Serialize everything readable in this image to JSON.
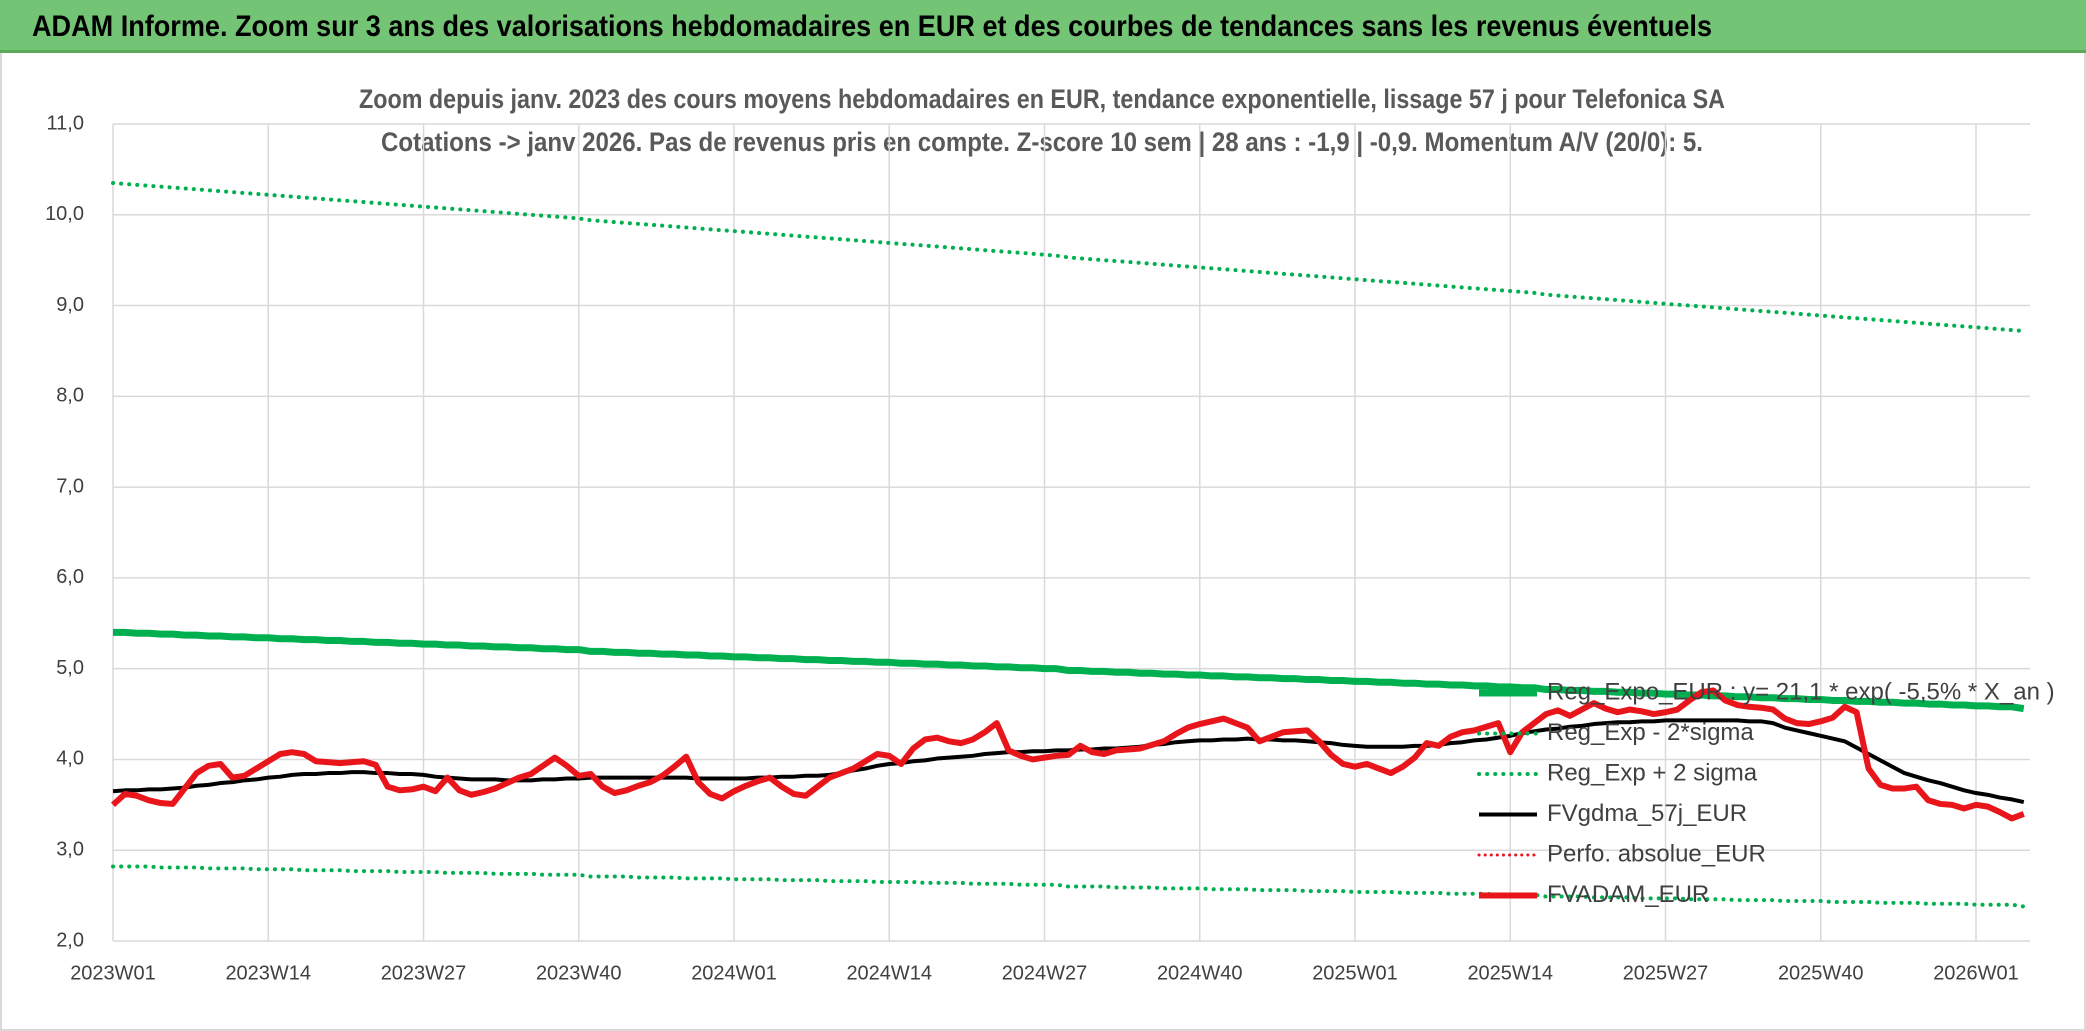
{
  "header": {
    "title": "ADAM Informe. Zoom sur 3 ans des valorisations hebdomadaires en EUR et des courbes de tendances sans les revenus éventuels"
  },
  "chart_data": {
    "type": "line",
    "title": "Zoom depuis janv. 2023 des cours moyens hebdomadaires en EUR, tendance exponentielle, lissage 57 j pour Telefonica SA",
    "subtitle": "Cotations -> janv 2026. Pas de revenus pris en compte. Z-score 10 sem | 28 ans : -1,9 | -0,9. Momentum A/V (20/0): 5.",
    "categories": [
      "2023W01",
      null,
      null,
      null,
      null,
      null,
      null,
      null,
      null,
      null,
      null,
      null,
      null,
      "2023W14",
      null,
      null,
      null,
      null,
      null,
      null,
      null,
      null,
      null,
      null,
      null,
      null,
      "2023W27",
      null,
      null,
      null,
      null,
      null,
      null,
      null,
      null,
      null,
      null,
      null,
      null,
      "2023W40",
      null,
      null,
      null,
      null,
      null,
      null,
      null,
      null,
      null,
      null,
      null,
      null,
      "2024W01",
      null,
      null,
      null,
      null,
      null,
      null,
      null,
      null,
      null,
      null,
      null,
      null,
      "2024W14",
      null,
      null,
      null,
      null,
      null,
      null,
      null,
      null,
      null,
      null,
      null,
      null,
      "2024W27",
      null,
      null,
      null,
      null,
      null,
      null,
      null,
      null,
      null,
      null,
      null,
      null,
      "2024W40",
      null,
      null,
      null,
      null,
      null,
      null,
      null,
      null,
      null,
      null,
      null,
      null,
      "2025W01",
      null,
      null,
      null,
      null,
      null,
      null,
      null,
      null,
      null,
      null,
      null,
      null,
      "2025W14",
      null,
      null,
      null,
      null,
      null,
      null,
      null,
      null,
      null,
      null,
      null,
      null,
      "2025W27",
      null,
      null,
      null,
      null,
      null,
      null,
      null,
      null,
      null,
      null,
      null,
      null,
      "2025W40",
      null,
      null,
      null,
      null,
      null,
      null,
      null,
      null,
      null,
      null,
      null,
      null,
      "2026W01",
      null,
      null,
      null,
      null
    ],
    "ylim": [
      2,
      11
    ],
    "yticks": [
      {
        "value": 2,
        "label": "2,0"
      },
      {
        "value": 3,
        "label": "3,0"
      },
      {
        "value": 4,
        "label": "4,0"
      },
      {
        "value": 5,
        "label": "5,0"
      },
      {
        "value": 6,
        "label": "6,0"
      },
      {
        "value": 7,
        "label": "7,0"
      },
      {
        "value": 8,
        "label": "8,0"
      },
      {
        "value": 9,
        "label": "9,0"
      },
      {
        "value": 10,
        "label": "10,0"
      },
      {
        "value": 11,
        "label": "11,0"
      }
    ],
    "grid": true,
    "legend": "lower right",
    "series": [
      {
        "name": "Reg_Expo_EUR : y= 21,1 * exp( -5,5% *  X_an )",
        "color": "#00b050",
        "style": "solid",
        "width": 7,
        "values": [
          5.4,
          5.4,
          5.39,
          5.39,
          5.38,
          5.38,
          5.37,
          5.37,
          5.36,
          5.36,
          5.35,
          5.35,
          5.34,
          5.34,
          5.33,
          5.33,
          5.32,
          5.32,
          5.31,
          5.31,
          5.3,
          5.3,
          5.29,
          5.29,
          5.28,
          5.28,
          5.27,
          5.27,
          5.26,
          5.26,
          5.25,
          5.25,
          5.24,
          5.24,
          5.23,
          5.23,
          5.22,
          5.22,
          5.21,
          5.21,
          5.19,
          5.19,
          5.18,
          5.18,
          5.17,
          5.17,
          5.16,
          5.16,
          5.15,
          5.15,
          5.14,
          5.14,
          5.13,
          5.13,
          5.12,
          5.12,
          5.11,
          5.11,
          5.1,
          5.1,
          5.09,
          5.09,
          5.08,
          5.08,
          5.07,
          5.07,
          5.06,
          5.06,
          5.05,
          5.05,
          5.04,
          5.04,
          5.03,
          5.03,
          5.02,
          5.02,
          5.01,
          5.01,
          5,
          5,
          4.98,
          4.98,
          4.97,
          4.97,
          4.96,
          4.96,
          4.95,
          4.95,
          4.94,
          4.94,
          4.93,
          4.93,
          4.92,
          4.92,
          4.91,
          4.91,
          4.9,
          4.9,
          4.89,
          4.89,
          4.88,
          4.88,
          4.87,
          4.87,
          4.86,
          4.86,
          4.85,
          4.85,
          4.84,
          4.84,
          4.83,
          4.83,
          4.82,
          4.82,
          4.81,
          4.81,
          4.8,
          4.8,
          4.79,
          4.79,
          4.77,
          4.77,
          4.76,
          4.76,
          4.75,
          4.75,
          4.74,
          4.74,
          4.73,
          4.73,
          4.72,
          4.72,
          4.71,
          4.71,
          4.7,
          4.7,
          4.69,
          4.69,
          4.68,
          4.68,
          4.67,
          4.67,
          4.66,
          4.66,
          4.65,
          4.65,
          4.64,
          4.64,
          4.63,
          4.63,
          4.62,
          4.62,
          4.61,
          4.61,
          4.6,
          4.6,
          4.59,
          4.59,
          4.58,
          4.58,
          4.56
        ]
      },
      {
        "name": "Reg_Exp - 2*sigma",
        "color": "#00b050",
        "style": "dotted",
        "width": 4,
        "values": [
          2.82,
          2.82,
          2.82,
          2.82,
          2.81,
          2.81,
          2.81,
          2.81,
          2.8,
          2.8,
          2.8,
          2.8,
          2.79,
          2.79,
          2.79,
          2.79,
          2.78,
          2.78,
          2.78,
          2.78,
          2.77,
          2.77,
          2.77,
          2.77,
          2.76,
          2.76,
          2.76,
          2.76,
          2.75,
          2.75,
          2.75,
          2.75,
          2.74,
          2.74,
          2.74,
          2.74,
          2.73,
          2.73,
          2.73,
          2.73,
          2.71,
          2.71,
          2.71,
          2.71,
          2.7,
          2.7,
          2.7,
          2.7,
          2.69,
          2.69,
          2.69,
          2.69,
          2.68,
          2.68,
          2.68,
          2.68,
          2.67,
          2.67,
          2.67,
          2.67,
          2.66,
          2.66,
          2.66,
          2.66,
          2.65,
          2.65,
          2.65,
          2.65,
          2.64,
          2.64,
          2.64,
          2.64,
          2.63,
          2.63,
          2.63,
          2.63,
          2.62,
          2.62,
          2.62,
          2.62,
          2.6,
          2.6,
          2.6,
          2.6,
          2.59,
          2.59,
          2.59,
          2.59,
          2.58,
          2.58,
          2.58,
          2.58,
          2.57,
          2.57,
          2.57,
          2.57,
          2.56,
          2.56,
          2.56,
          2.56,
          2.55,
          2.55,
          2.55,
          2.55,
          2.54,
          2.54,
          2.54,
          2.54,
          2.53,
          2.53,
          2.53,
          2.53,
          2.52,
          2.52,
          2.52,
          2.52,
          2.51,
          2.51,
          2.51,
          2.51,
          2.49,
          2.49,
          2.49,
          2.49,
          2.48,
          2.48,
          2.48,
          2.48,
          2.47,
          2.47,
          2.47,
          2.47,
          2.46,
          2.46,
          2.46,
          2.46,
          2.45,
          2.45,
          2.45,
          2.45,
          2.44,
          2.44,
          2.44,
          2.44,
          2.43,
          2.43,
          2.43,
          2.43,
          2.42,
          2.42,
          2.42,
          2.42,
          2.41,
          2.41,
          2.41,
          2.41,
          2.4,
          2.4,
          2.4,
          2.4,
          2.38
        ]
      },
      {
        "name": "Reg_Exp + 2 sigma",
        "color": "#00b050",
        "style": "dotted",
        "width": 4,
        "values": [
          10.35,
          10.34,
          10.33,
          10.32,
          10.31,
          10.3,
          10.29,
          10.28,
          10.27,
          10.26,
          10.25,
          10.24,
          10.23,
          10.22,
          10.21,
          10.2,
          10.19,
          10.18,
          10.17,
          10.16,
          10.15,
          10.14,
          10.13,
          10.12,
          10.11,
          10.1,
          10.09,
          10.08,
          10.07,
          10.06,
          10.05,
          10.04,
          10.03,
          10.02,
          10.01,
          10,
          9.99,
          9.98,
          9.97,
          9.96,
          9.94,
          9.93,
          9.92,
          9.91,
          9.9,
          9.89,
          9.88,
          9.87,
          9.86,
          9.85,
          9.84,
          9.83,
          9.82,
          9.81,
          9.8,
          9.79,
          9.78,
          9.77,
          9.76,
          9.75,
          9.74,
          9.73,
          9.72,
          9.71,
          9.7,
          9.69,
          9.68,
          9.67,
          9.66,
          9.65,
          9.64,
          9.63,
          9.62,
          9.61,
          9.6,
          9.59,
          9.58,
          9.57,
          9.56,
          9.55,
          9.53,
          9.52,
          9.51,
          9.5,
          9.49,
          9.48,
          9.47,
          9.46,
          9.45,
          9.44,
          9.43,
          9.42,
          9.41,
          9.4,
          9.39,
          9.38,
          9.37,
          9.36,
          9.35,
          9.34,
          9.33,
          9.32,
          9.31,
          9.3,
          9.29,
          9.28,
          9.27,
          9.26,
          9.25,
          9.24,
          9.23,
          9.22,
          9.21,
          9.2,
          9.19,
          9.18,
          9.17,
          9.16,
          9.15,
          9.14,
          9.12,
          9.11,
          9.1,
          9.09,
          9.08,
          9.07,
          9.06,
          9.05,
          9.04,
          9.03,
          9.02,
          9.01,
          9,
          8.99,
          8.98,
          8.97,
          8.96,
          8.95,
          8.94,
          8.93,
          8.92,
          8.91,
          8.9,
          8.89,
          8.88,
          8.87,
          8.86,
          8.85,
          8.84,
          8.83,
          8.82,
          8.81,
          8.8,
          8.79,
          8.78,
          8.77,
          8.76,
          8.75,
          8.74,
          8.73,
          8.72
        ]
      },
      {
        "name": "FVgdma_57j_EUR",
        "color": "#000000",
        "style": "solid",
        "width": 4,
        "values": [
          3.65,
          3.66,
          3.66,
          3.67,
          3.67,
          3.68,
          3.69,
          3.71,
          3.72,
          3.74,
          3.75,
          3.77,
          3.78,
          3.8,
          3.81,
          3.83,
          3.84,
          3.84,
          3.85,
          3.85,
          3.86,
          3.86,
          3.85,
          3.85,
          3.84,
          3.84,
          3.83,
          3.81,
          3.8,
          3.79,
          3.78,
          3.78,
          3.78,
          3.77,
          3.77,
          3.77,
          3.78,
          3.78,
          3.79,
          3.79,
          3.8,
          3.8,
          3.8,
          3.8,
          3.8,
          3.8,
          3.8,
          3.8,
          3.8,
          3.79,
          3.79,
          3.79,
          3.79,
          3.79,
          3.8,
          3.8,
          3.81,
          3.81,
          3.82,
          3.82,
          3.83,
          3.85,
          3.88,
          3.9,
          3.93,
          3.95,
          3.96,
          3.98,
          3.99,
          4.01,
          4.02,
          4.03,
          4.04,
          4.06,
          4.07,
          4.08,
          4.08,
          4.09,
          4.09,
          4.1,
          4.1,
          4.11,
          4.11,
          4.12,
          4.12,
          4.13,
          4.14,
          4.16,
          4.17,
          4.19,
          4.2,
          4.21,
          4.21,
          4.22,
          4.22,
          4.23,
          4.22,
          4.22,
          4.21,
          4.21,
          4.2,
          4.19,
          4.18,
          4.16,
          4.15,
          4.14,
          4.14,
          4.14,
          4.14,
          4.15,
          4.15,
          4.16,
          4.18,
          4.19,
          4.21,
          4.22,
          4.24,
          4.26,
          4.29,
          4.31,
          4.33,
          4.34,
          4.36,
          4.37,
          4.39,
          4.4,
          4.41,
          4.41,
          4.42,
          4.42,
          4.43,
          4.43,
          4.43,
          4.43,
          4.43,
          4.43,
          4.43,
          4.42,
          4.42,
          4.4,
          4.35,
          4.32,
          4.29,
          4.26,
          4.23,
          4.2,
          4.13,
          4.06,
          3.99,
          3.92,
          3.85,
          3.81,
          3.77,
          3.74,
          3.7,
          3.66,
          3.63,
          3.61,
          3.58,
          3.56,
          3.53
        ]
      },
      {
        "name": "Perfo. absolue_EUR",
        "color": "#e8161b",
        "style": "dotted",
        "width": 3
      },
      {
        "name": "FVADAM_EUR",
        "color": "#e8161b",
        "style": "solid",
        "width": 6,
        "values": [
          3.5,
          3.62,
          3.6,
          3.55,
          3.52,
          3.51,
          3.68,
          3.85,
          3.93,
          3.95,
          3.8,
          3.82,
          3.9,
          3.98,
          4.06,
          4.08,
          4.06,
          3.98,
          3.97,
          3.96,
          3.97,
          3.98,
          3.94,
          3.7,
          3.66,
          3.67,
          3.7,
          3.65,
          3.8,
          3.66,
          3.61,
          3.64,
          3.68,
          3.74,
          3.8,
          3.84,
          3.93,
          4.02,
          3.93,
          3.82,
          3.84,
          3.7,
          3.63,
          3.66,
          3.71,
          3.75,
          3.82,
          3.92,
          4.03,
          3.75,
          3.62,
          3.57,
          3.65,
          3.71,
          3.76,
          3.8,
          3.7,
          3.62,
          3.6,
          3.7,
          3.8,
          3.85,
          3.9,
          3.98,
          4.06,
          4.04,
          3.95,
          4.12,
          4.22,
          4.24,
          4.2,
          4.18,
          4.22,
          4.3,
          4.4,
          4.1,
          4.04,
          4,
          4.02,
          4.04,
          4.05,
          4.15,
          4.08,
          4.06,
          4.1,
          4.11,
          4.12,
          4.16,
          4.2,
          4.28,
          4.35,
          4.39,
          4.42,
          4.45,
          4.4,
          4.35,
          4.2,
          4.25,
          4.3,
          4.31,
          4.32,
          4.2,
          4.05,
          3.95,
          3.92,
          3.95,
          3.9,
          3.85,
          3.92,
          4.02,
          4.18,
          4.15,
          4.25,
          4.3,
          4.32,
          4.36,
          4.4,
          4.08,
          4.3,
          4.4,
          4.5,
          4.54,
          4.48,
          4.55,
          4.62,
          4.56,
          4.52,
          4.55,
          4.53,
          4.5,
          4.52,
          4.55,
          4.65,
          4.74,
          4.76,
          4.65,
          4.6,
          4.58,
          4.57,
          4.55,
          4.45,
          4.4,
          4.39,
          4.42,
          4.46,
          4.58,
          4.52,
          3.9,
          3.72,
          3.68,
          3.68,
          3.7,
          3.55,
          3.51,
          3.5,
          3.46,
          3.5,
          3.48,
          3.42,
          3.35,
          3.4
        ]
      }
    ]
  }
}
